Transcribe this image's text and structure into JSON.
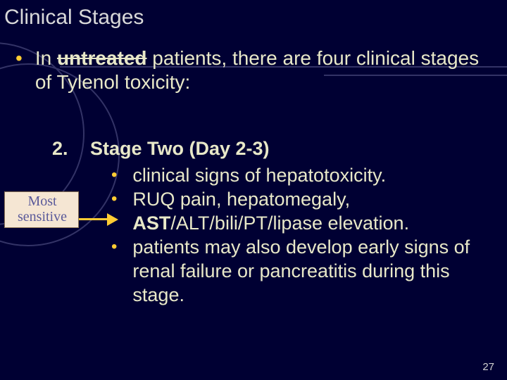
{
  "colors": {
    "background": "#000033",
    "accent": "#ffcc33",
    "body_text": "#e8e8c8",
    "title_text": "#d9d9d9",
    "deco": "#333366",
    "callout_bg": "#f5e6d3",
    "callout_border": "#8b7355",
    "callout_text": "#5a5a9a"
  },
  "title": "Clinical Stages",
  "main": {
    "pre": "In ",
    "bold_struck": "untreated",
    "post": " patients, there are four clinical stages of Tylenol toxicity:"
  },
  "stage": {
    "number": "2.",
    "title": "Stage Two (Day 2-3)"
  },
  "sub_items": [
    {
      "text": "clinical signs of hepatotoxicity."
    },
    {
      "text_pre": "RUQ pain, hepatomegaly, ",
      "bold": "AST",
      "text_post": "/ALT/bili/PT/lipase elevation."
    },
    {
      "text": "patients may also develop early signs of renal failure or pancreatitis during this stage."
    }
  ],
  "callout": {
    "line1": "Most",
    "line2": "sensitive"
  },
  "page_number": "27",
  "typography": {
    "title_fontsize": 30,
    "body_fontsize": 28,
    "sub_fontsize": 27,
    "callout_fontsize": 20,
    "pagenum_fontsize": 15
  }
}
